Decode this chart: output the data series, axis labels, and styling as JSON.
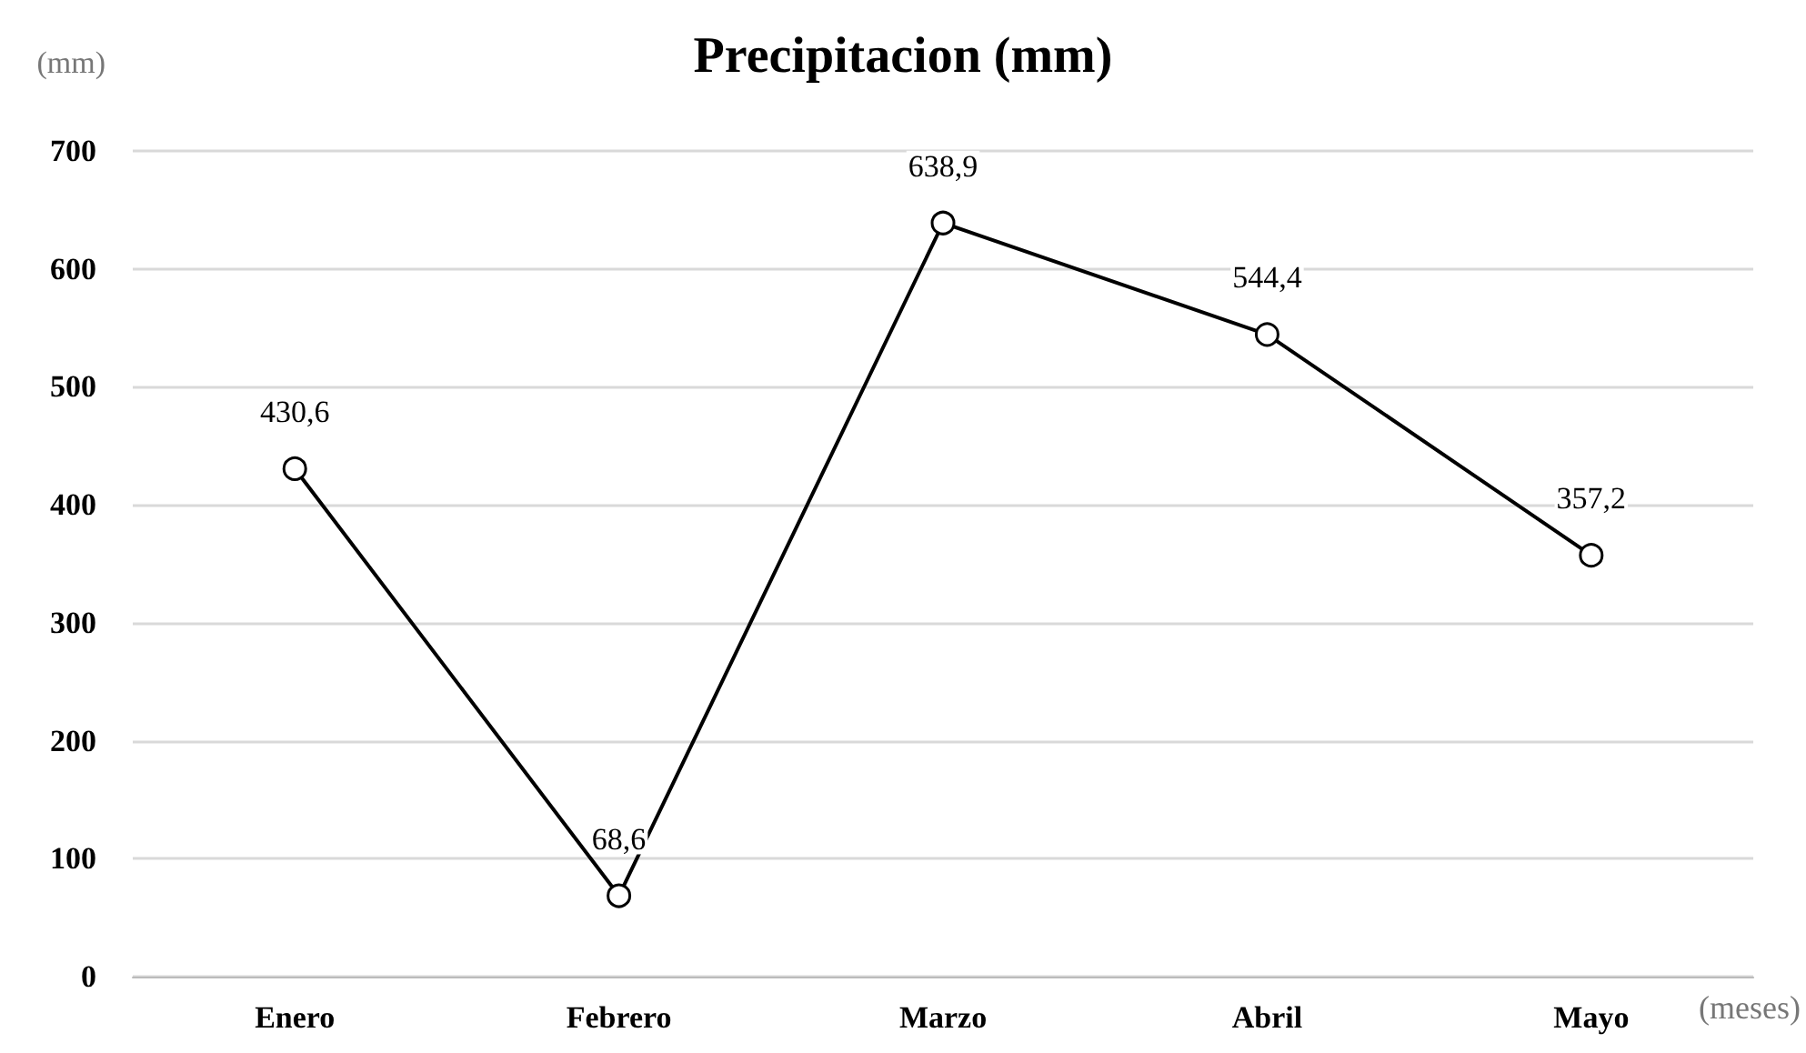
{
  "chart_data": {
    "type": "line",
    "title": "Precipitacion (mm)",
    "ylabel": "(mm)",
    "xlabel": "(meses)",
    "categories": [
      "Enero",
      "Febrero",
      "Marzo",
      "Abril",
      "Mayo"
    ],
    "series": [
      {
        "color": "#000000",
        "values": [
          430.6,
          68.6,
          638.9,
          544.4,
          357.2
        ],
        "value_labels": [
          "430,6",
          "68,6",
          "638,9",
          "544,4",
          "357,2"
        ]
      }
    ],
    "ylim": [
      0,
      700
    ],
    "yticks": [
      0,
      100,
      200,
      300,
      400,
      500,
      600,
      700
    ],
    "grid": "y",
    "marker": "circle",
    "line_style": "solid"
  }
}
